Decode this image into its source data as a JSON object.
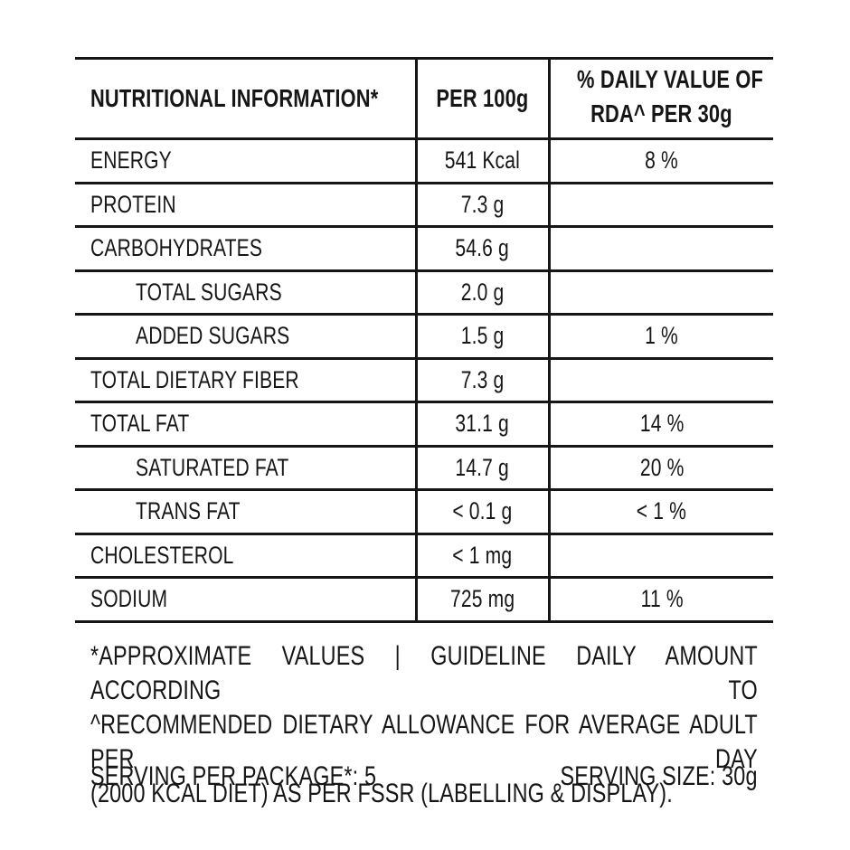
{
  "colors": {
    "text": "#161616",
    "border": "#161616",
    "background": "#ffffff"
  },
  "table": {
    "header": {
      "col1": "NUTRITIONAL INFORMATION*",
      "col2": "PER 100g",
      "col3_line1": "% DAILY VALUE OF",
      "col3_line2": "RDA^ PER 30g"
    },
    "rows": [
      {
        "label": "ENERGY",
        "indent": false,
        "per100g": "541 Kcal",
        "rda": "8 %"
      },
      {
        "label": "PROTEIN",
        "indent": false,
        "per100g": "7.3 g",
        "rda": ""
      },
      {
        "label": "CARBOHYDRATES",
        "indent": false,
        "per100g": "54.6 g",
        "rda": ""
      },
      {
        "label": "TOTAL SUGARS",
        "indent": true,
        "per100g": "2.0 g",
        "rda": ""
      },
      {
        "label": "ADDED SUGARS",
        "indent": true,
        "per100g": "1.5 g",
        "rda": "1 %"
      },
      {
        "label": "TOTAL DIETARY FIBER",
        "indent": false,
        "per100g": "7.3 g",
        "rda": ""
      },
      {
        "label": "TOTAL FAT",
        "indent": false,
        "per100g": "31.1 g",
        "rda": "14 %"
      },
      {
        "label": "SATURATED FAT",
        "indent": true,
        "per100g": "14.7 g",
        "rda": "20 %"
      },
      {
        "label": "TRANS FAT",
        "indent": true,
        "per100g": "< 0.1 g",
        "rda": "< 1 %"
      },
      {
        "label": "CHOLESTEROL",
        "indent": false,
        "per100g": "< 1 mg",
        "rda": ""
      },
      {
        "label": "SODIUM",
        "indent": false,
        "per100g": "725 mg",
        "rda": "11 %"
      }
    ]
  },
  "footnote": {
    "line1": "*APPROXIMATE VALUES | GUIDELINE DAILY AMOUNT ACCORDING TO",
    "line2": "^RECOMMENDED DIETARY ALLOWANCE FOR AVERAGE ADULT PER DAY",
    "line3": "(2000 KCAL DIET) AS PER FSSR (LABELLING & DISPLAY)."
  },
  "serving": {
    "per_package": "SERVING PER PACKAGE*: 5",
    "size": "SERVING SIZE: 30g"
  }
}
